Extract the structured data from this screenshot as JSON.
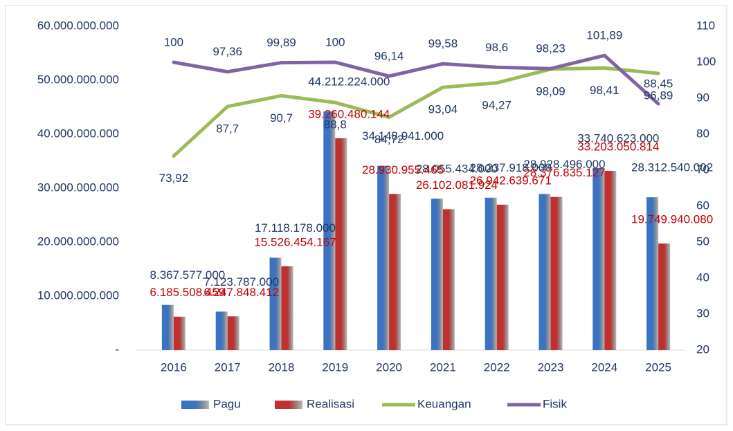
{
  "chart_data": {
    "type": "bar-line",
    "categories": [
      "2016",
      "2017",
      "2018",
      "2019",
      "2020",
      "2021",
      "2022",
      "2023",
      "2024",
      "2025"
    ],
    "series": [
      {
        "name": "Pagu",
        "type": "bar",
        "color": "#3b73c2",
        "label_color": "#1f3864",
        "values": [
          8367577000,
          7123787000,
          17118178000,
          44212224000,
          34148941000,
          28055434000,
          28237918000,
          28928496000,
          33740623000,
          28312540002
        ],
        "value_labels": [
          "8.367.577.000",
          "7.123.787.000",
          "17.118.178.000",
          "44.212.224.000",
          "34.148.941.000",
          "28.055.434.000",
          "28.237.918.000",
          "28.928.496.000",
          "33.740.623.000",
          "28.312.540.002"
        ]
      },
      {
        "name": "Realisasi",
        "type": "bar",
        "color": "#c0302e",
        "label_color": "#c00000",
        "values": [
          6185508459,
          6247848412,
          15526454167,
          39260480144,
          28930955465,
          26102081924,
          26942639671,
          28376835127,
          33203050814,
          19749940080
        ],
        "value_labels": [
          "6.185.508.459",
          "6.247.848.412",
          "15.526.454.167",
          "39.260.480.144",
          "28.930.955.465",
          "26.102.081.924",
          "26.942.639.671",
          "28.376.835.127",
          "33.203.050.814",
          "19.749.940.080"
        ]
      },
      {
        "name": "Keuangan",
        "type": "line",
        "axis": "y2",
        "color": "#9bbb59",
        "label_color": "#1f3864",
        "values": [
          73.92,
          87.7,
          90.7,
          88.8,
          84.72,
          93.04,
          94.27,
          98.09,
          98.41,
          96.89
        ],
        "value_labels": [
          "73,92",
          "87,7",
          "90,7",
          "88,8",
          "84,72",
          "93,04",
          "94,27",
          "98,09",
          "98,41",
          "96,89"
        ]
      },
      {
        "name": "Fisik",
        "type": "line",
        "axis": "y2",
        "color": "#8064a2",
        "label_color": "#1f3864",
        "values": [
          100,
          97.36,
          99.89,
          100,
          96.14,
          99.58,
          98.6,
          98.23,
          101.89,
          88.45
        ],
        "value_labels": [
          "100",
          "97,36",
          "99,89",
          "100",
          "96,14",
          "99,58",
          "98,6",
          "98,23",
          "101,89",
          "88,45"
        ]
      }
    ],
    "ylim": [
      0,
      60000000000
    ],
    "yticks": [
      {
        "value": 0,
        "label": "-"
      },
      {
        "value": 10000000000,
        "label": "10.000.000.000"
      },
      {
        "value": 20000000000,
        "label": "20.000.000.000"
      },
      {
        "value": 30000000000,
        "label": "30.000.000.000"
      },
      {
        "value": 40000000000,
        "label": "40.000.000.000"
      },
      {
        "value": 50000000000,
        "label": "50.000.000.000"
      },
      {
        "value": 60000000000,
        "label": "60.000.000.000"
      }
    ],
    "y2lim": [
      20,
      110
    ],
    "y2ticks": [
      20,
      30,
      40,
      50,
      60,
      70,
      80,
      90,
      100,
      110
    ],
    "legend": "bottom",
    "grid": false
  }
}
